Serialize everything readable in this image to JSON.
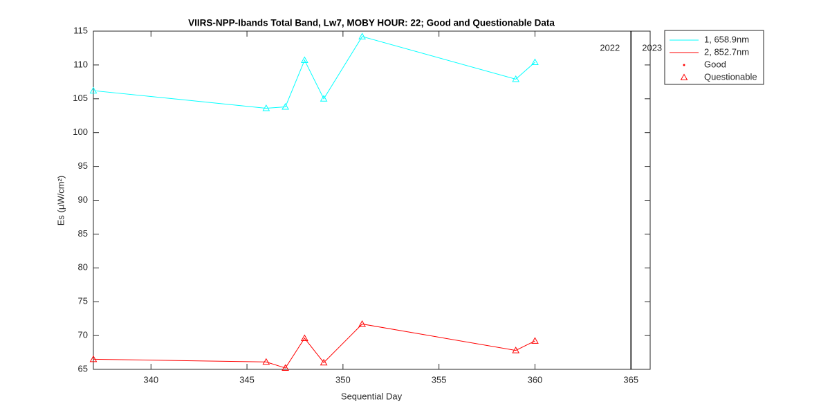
{
  "chart_data": {
    "type": "line",
    "title": "VIIRS-NPP-Ibands Total Band,  Lw7, MOBY HOUR: 22;  Good and Questionable Data",
    "xlabel": "Sequential Day",
    "ylabel": "Es (µW/cm²)",
    "x": [
      337,
      346,
      347,
      348,
      349,
      351,
      359,
      360
    ],
    "series": [
      {
        "name": "1, 658.9nm",
        "color": "#00ffff",
        "values": [
          106.2,
          103.6,
          103.8,
          110.7,
          105.0,
          114.2,
          107.9,
          110.4
        ]
      },
      {
        "name": "2, 852.7nm",
        "color": "#ff0000",
        "values": [
          66.5,
          66.1,
          65.2,
          69.6,
          66.0,
          71.7,
          67.8,
          69.2
        ]
      }
    ],
    "marker_legend": [
      {
        "name": "Good",
        "marker": "dot",
        "color": "#ff0000"
      },
      {
        "name": "Questionable",
        "marker": "triangle",
        "color": "#ff0000"
      }
    ],
    "year_divider": {
      "x": 365,
      "left_label": "2022",
      "right_label": "2023"
    },
    "xlim": [
      337,
      366
    ],
    "ylim": [
      65,
      115
    ],
    "xticks": [
      340,
      345,
      350,
      355,
      360,
      365
    ],
    "yticks": [
      65,
      70,
      75,
      80,
      85,
      90,
      95,
      100,
      105,
      110,
      115
    ],
    "legend_position": "outside-top-right"
  }
}
